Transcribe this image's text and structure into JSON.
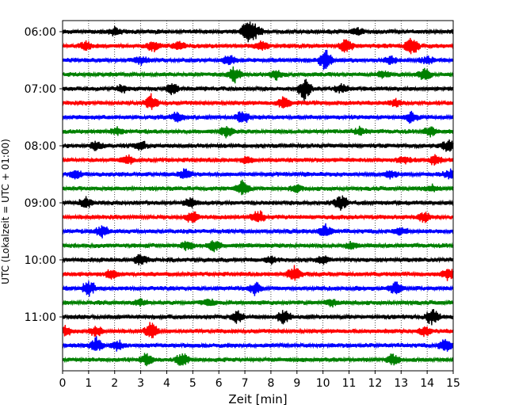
{
  "chart_data": {
    "type": "line",
    "subtype": "helicorder",
    "xlabel": "Zeit  [min]",
    "ylabel": "UTC (Lokalzeit = UTC + 01:00)",
    "xlim": [
      0,
      15
    ],
    "xticks": [
      "0",
      "1",
      "2",
      "3",
      "4",
      "5",
      "6",
      "7",
      "8",
      "9",
      "10",
      "11",
      "12",
      "13",
      "14",
      "15"
    ],
    "ytick_labels": [
      "06:00",
      "07:00",
      "08:00",
      "09:00",
      "10:00",
      "11:00"
    ],
    "grid": "vertical dotted",
    "color_cycle": [
      "#000000",
      "#ff0000",
      "#0000ff",
      "#008000"
    ],
    "rows": [
      {
        "time": "06:00",
        "color": "#000000",
        "events": [
          [
            2.0,
            0.7
          ],
          [
            7.1,
            1.6
          ],
          [
            7.4,
            1.0
          ],
          [
            11.3,
            0.6
          ]
        ]
      },
      {
        "time": "06:15",
        "color": "#ff0000",
        "events": [
          [
            0.9,
            0.7
          ],
          [
            3.5,
            1.0
          ],
          [
            4.5,
            0.8
          ],
          [
            7.6,
            0.9
          ],
          [
            10.9,
            1.2
          ],
          [
            13.4,
            1.6
          ]
        ]
      },
      {
        "time": "06:30",
        "color": "#0000ff",
        "events": [
          [
            3.0,
            0.7
          ],
          [
            6.4,
            0.8
          ],
          [
            10.1,
            1.9
          ],
          [
            12.6,
            0.7
          ],
          [
            14.0,
            0.6
          ]
        ]
      },
      {
        "time": "06:45",
        "color": "#008000",
        "events": [
          [
            6.6,
            1.2
          ],
          [
            8.2,
            0.8
          ],
          [
            12.3,
            0.6
          ],
          [
            13.9,
            1.0
          ]
        ]
      },
      {
        "time": "07:00",
        "color": "#000000",
        "events": [
          [
            2.3,
            0.7
          ],
          [
            4.2,
            0.9
          ],
          [
            9.3,
            1.8
          ],
          [
            10.7,
            0.8
          ]
        ]
      },
      {
        "time": "07:15",
        "color": "#ff0000",
        "events": [
          [
            3.4,
            1.2
          ],
          [
            8.5,
            1.1
          ],
          [
            12.8,
            0.6
          ]
        ]
      },
      {
        "time": "07:30",
        "color": "#0000ff",
        "events": [
          [
            4.4,
            1.0
          ],
          [
            6.9,
            1.2
          ],
          [
            13.4,
            1.0
          ]
        ]
      },
      {
        "time": "07:45",
        "color": "#008000",
        "events": [
          [
            2.1,
            0.6
          ],
          [
            6.3,
            1.1
          ],
          [
            11.4,
            0.7
          ],
          [
            14.1,
            0.8
          ]
        ]
      },
      {
        "time": "08:00",
        "color": "#000000",
        "events": [
          [
            1.3,
            0.9
          ],
          [
            3.0,
            0.7
          ],
          [
            14.8,
            1.0
          ]
        ]
      },
      {
        "time": "08:15",
        "color": "#ff0000",
        "events": [
          [
            2.5,
            0.7
          ],
          [
            7.1,
            0.6
          ],
          [
            13.1,
            0.6
          ],
          [
            14.3,
            0.8
          ]
        ]
      },
      {
        "time": "08:30",
        "color": "#0000ff",
        "events": [
          [
            0.5,
            0.7
          ],
          [
            4.7,
            0.8
          ],
          [
            12.6,
            0.7
          ],
          [
            14.9,
            0.8
          ]
        ]
      },
      {
        "time": "08:45",
        "color": "#008000",
        "events": [
          [
            6.9,
            1.4
          ],
          [
            9.0,
            0.6
          ],
          [
            14.2,
            0.6
          ]
        ]
      },
      {
        "time": "09:00",
        "color": "#000000",
        "events": [
          [
            0.9,
            0.9
          ],
          [
            4.9,
            0.8
          ],
          [
            10.7,
            1.3
          ]
        ]
      },
      {
        "time": "09:15",
        "color": "#ff0000",
        "events": [
          [
            5.0,
            1.0
          ],
          [
            7.5,
            1.2
          ],
          [
            13.9,
            0.8
          ]
        ]
      },
      {
        "time": "09:30",
        "color": "#0000ff",
        "events": [
          [
            1.5,
            1.0
          ],
          [
            10.1,
            1.1
          ],
          [
            13.0,
            0.6
          ]
        ]
      },
      {
        "time": "09:45",
        "color": "#008000",
        "events": [
          [
            4.8,
            0.7
          ],
          [
            5.8,
            1.0
          ],
          [
            11.1,
            0.6
          ]
        ]
      },
      {
        "time": "10:00",
        "color": "#000000",
        "events": [
          [
            3.0,
            1.1
          ],
          [
            10.0,
            0.7
          ],
          [
            8.0,
            0.6
          ]
        ]
      },
      {
        "time": "10:15",
        "color": "#ff0000",
        "events": [
          [
            1.9,
            1.0
          ],
          [
            8.9,
            1.5
          ],
          [
            14.8,
            1.0
          ]
        ]
      },
      {
        "time": "10:30",
        "color": "#0000ff",
        "events": [
          [
            1.0,
            1.3
          ],
          [
            7.4,
            1.1
          ],
          [
            12.8,
            1.2
          ]
        ]
      },
      {
        "time": "10:45",
        "color": "#008000",
        "events": [
          [
            3.0,
            0.6
          ],
          [
            5.6,
            0.6
          ],
          [
            10.3,
            0.6
          ]
        ]
      },
      {
        "time": "11:00",
        "color": "#000000",
        "events": [
          [
            6.7,
            1.1
          ],
          [
            8.5,
            1.3
          ],
          [
            14.2,
            1.6
          ]
        ]
      },
      {
        "time": "11:15",
        "color": "#ff0000",
        "events": [
          [
            0.1,
            0.7
          ],
          [
            1.3,
            1.0
          ],
          [
            3.4,
            1.4
          ],
          [
            13.9,
            0.8
          ]
        ]
      },
      {
        "time": "11:30",
        "color": "#0000ff",
        "events": [
          [
            1.3,
            1.4
          ],
          [
            2.1,
            0.8
          ],
          [
            14.7,
            1.1
          ]
        ]
      },
      {
        "time": "11:45",
        "color": "#008000",
        "events": [
          [
            3.2,
            1.0
          ],
          [
            4.6,
            1.2
          ],
          [
            12.7,
            1.1
          ]
        ]
      }
    ]
  }
}
